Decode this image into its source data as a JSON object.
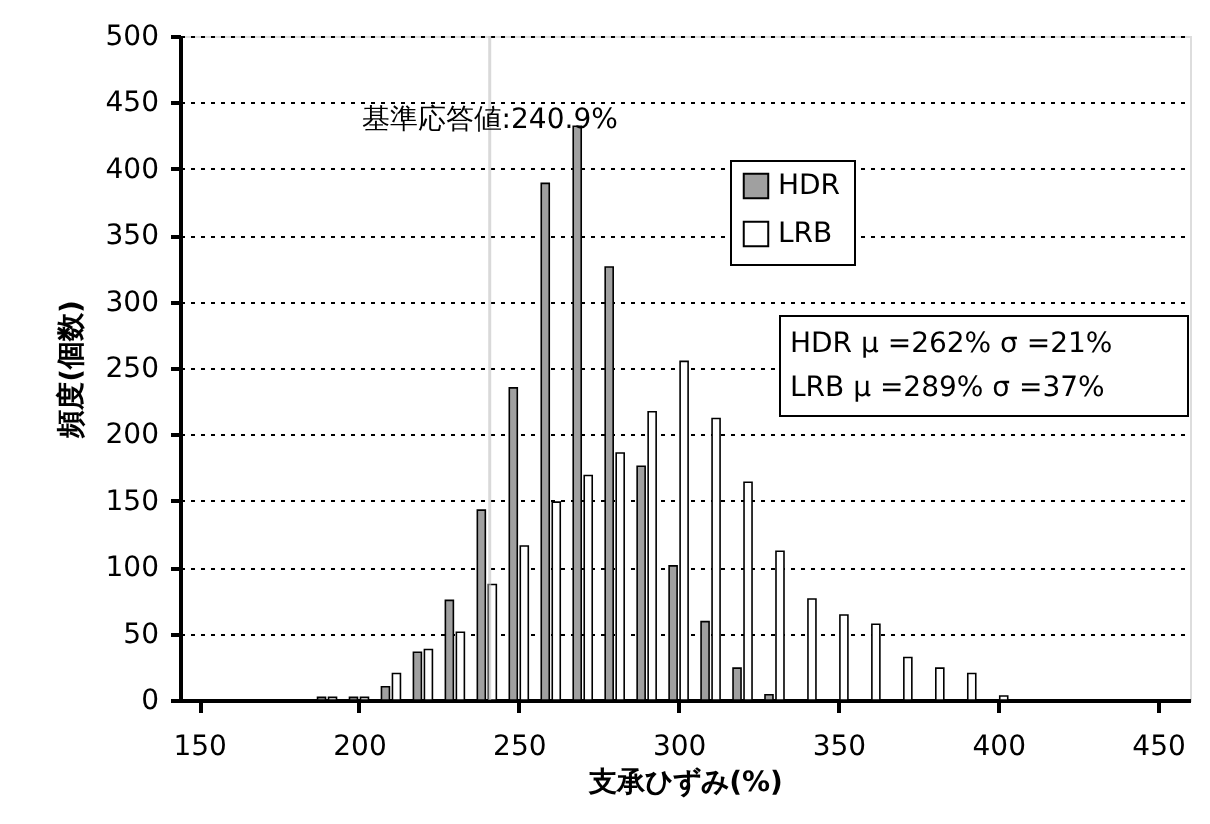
{
  "chart_data": {
    "type": "bar",
    "xlabel": "支承ひずみ(%)",
    "ylabel": "頻度(個数)",
    "x": [
      190,
      200,
      210,
      220,
      230,
      240,
      250,
      260,
      270,
      280,
      290,
      300,
      310,
      320,
      330,
      340,
      350,
      360,
      370,
      380,
      390,
      400
    ],
    "series": [
      {
        "name": "HDR",
        "color": "#a0a0a0",
        "values": [
          2,
          2,
          10,
          36,
          75,
          143,
          235,
          389,
          432,
          326,
          176,
          101,
          59,
          24,
          4,
          null,
          null,
          null,
          null,
          null,
          null,
          null
        ]
      },
      {
        "name": "LRB",
        "color": "#ffffff",
        "values": [
          2,
          2,
          20,
          38,
          51,
          87,
          116,
          149,
          169,
          186,
          217,
          255,
          212,
          164,
          112,
          76,
          64,
          57,
          32,
          24,
          20,
          3
        ]
      }
    ],
    "xlim": [
      144,
      460
    ],
    "xticks": [
      150,
      200,
      250,
      300,
      350,
      400,
      450
    ],
    "ylim": [
      0,
      500
    ],
    "yticks": [
      0,
      50,
      100,
      150,
      200,
      250,
      300,
      350,
      400,
      450,
      500
    ],
    "grid": "y",
    "legend": "top right",
    "ref_lines": [
      {
        "axis": "x",
        "value": 240.9,
        "label": "基準応答値:240.9%",
        "color": "#c0c0c0"
      }
    ],
    "annotations": [
      "HDR  μ =262%  σ =21%",
      "LRB  μ =289%  σ =37%"
    ]
  }
}
